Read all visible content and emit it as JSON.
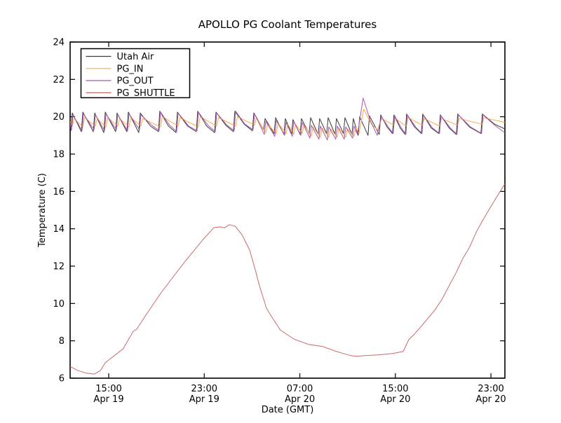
{
  "chart_data": {
    "type": "line",
    "title": "APOLLO PG Coolant Temperatures",
    "xlabel": "Date (GMT)",
    "ylabel": "Temperature (C)",
    "grid": false,
    "legend_position": "upper left",
    "ylim": [
      6,
      24
    ],
    "yticks": [
      6,
      8,
      10,
      12,
      14,
      16,
      18,
      20,
      22,
      24
    ],
    "xlim_hours_since_apr19_0000": [
      11.77,
      48.17
    ],
    "xticks": [
      {
        "t": 15,
        "time": "15:00",
        "date": "Apr 19"
      },
      {
        "t": 23,
        "time": "23:00",
        "date": "Apr 19"
      },
      {
        "t": 31,
        "time": "07:00",
        "date": "Apr 20"
      },
      {
        "t": 39,
        "time": "15:00",
        "date": "Apr 20"
      },
      {
        "t": 47,
        "time": "23:00",
        "date": "Apr 20"
      }
    ],
    "frame_color": "#000000",
    "background_color": "#ffffff",
    "series": [
      {
        "name": "Utah Air",
        "color": "#3b3b3b",
        "points": [
          [
            11.77,
            19.75
          ],
          [
            11.83,
            19.25
          ],
          [
            11.95,
            20.2
          ],
          [
            12.71,
            19.2
          ],
          [
            12.83,
            20.25
          ],
          [
            13.71,
            19.2
          ],
          [
            13.83,
            20.2
          ],
          [
            14.59,
            19.15
          ],
          [
            14.71,
            20.25
          ],
          [
            15.58,
            19.2
          ],
          [
            15.7,
            20.2
          ],
          [
            16.52,
            19.2
          ],
          [
            16.64,
            20.25
          ],
          [
            17.52,
            19.15
          ],
          [
            17.64,
            20.2
          ],
          [
            18.5,
            19.5
          ],
          [
            19.16,
            19.2
          ],
          [
            19.28,
            20.3
          ],
          [
            20.0,
            19.5
          ],
          [
            20.63,
            19.15
          ],
          [
            20.75,
            20.25
          ],
          [
            21.6,
            19.5
          ],
          [
            22.33,
            19.2
          ],
          [
            22.45,
            20.3
          ],
          [
            23.2,
            19.5
          ],
          [
            23.86,
            19.15
          ],
          [
            23.98,
            20.25
          ],
          [
            24.8,
            19.55
          ],
          [
            25.44,
            19.2
          ],
          [
            25.56,
            20.3
          ],
          [
            26.35,
            19.6
          ],
          [
            27.03,
            19.25
          ],
          [
            27.15,
            20.2
          ],
          [
            27.97,
            19.3
          ],
          [
            28.09,
            19.9
          ],
          [
            28.85,
            19.1
          ],
          [
            28.97,
            19.95
          ],
          [
            29.67,
            19.05
          ],
          [
            29.79,
            19.9
          ],
          [
            30.31,
            19.1
          ],
          [
            30.43,
            19.85
          ],
          [
            31.02,
            19.05
          ],
          [
            31.14,
            19.9
          ],
          [
            31.78,
            19.1
          ],
          [
            31.9,
            19.95
          ],
          [
            32.54,
            19.05
          ],
          [
            32.66,
            19.9
          ],
          [
            33.25,
            19.1
          ],
          [
            33.37,
            19.95
          ],
          [
            33.95,
            19.05
          ],
          [
            34.07,
            19.9
          ],
          [
            34.66,
            19.1
          ],
          [
            34.78,
            19.95
          ],
          [
            35.36,
            19.05
          ],
          [
            35.48,
            19.9
          ],
          [
            35.89,
            19.0
          ],
          [
            36.01,
            20.0
          ],
          [
            36.71,
            19.0
          ],
          [
            36.83,
            20.05
          ],
          [
            37.65,
            19.05
          ],
          [
            37.77,
            20.1
          ],
          [
            38.3,
            19.45
          ],
          [
            38.76,
            19.1
          ],
          [
            38.88,
            20.1
          ],
          [
            39.4,
            19.4
          ],
          [
            39.82,
            19.05
          ],
          [
            39.94,
            20.15
          ],
          [
            40.6,
            19.45
          ],
          [
            41.17,
            19.1
          ],
          [
            41.29,
            20.15
          ],
          [
            42.0,
            19.4
          ],
          [
            42.64,
            19.1
          ],
          [
            42.76,
            20.1
          ],
          [
            43.5,
            19.4
          ],
          [
            44.1,
            19.05
          ],
          [
            44.22,
            20.15
          ],
          [
            45.2,
            19.45
          ],
          [
            46.16,
            19.1
          ],
          [
            46.28,
            20.15
          ],
          [
            47.3,
            19.6
          ],
          [
            48.16,
            19.35
          ]
        ]
      },
      {
        "name": "PG_IN",
        "color": "#ffa843",
        "points": [
          [
            11.77,
            19.75
          ],
          [
            11.95,
            19.5
          ],
          [
            12.1,
            19.9
          ],
          [
            12.83,
            19.45
          ],
          [
            12.98,
            19.95
          ],
          [
            13.89,
            19.5
          ],
          [
            14.04,
            19.9
          ],
          [
            14.77,
            19.45
          ],
          [
            14.92,
            19.95
          ],
          [
            15.76,
            19.5
          ],
          [
            15.91,
            19.9
          ],
          [
            16.7,
            19.45
          ],
          [
            16.85,
            19.95
          ],
          [
            17.7,
            19.5
          ],
          [
            17.85,
            19.9
          ],
          [
            19.34,
            19.45
          ],
          [
            19.49,
            20.0
          ],
          [
            20.81,
            19.5
          ],
          [
            20.96,
            19.95
          ],
          [
            22.51,
            19.45
          ],
          [
            22.66,
            20.0
          ],
          [
            24.04,
            19.5
          ],
          [
            24.19,
            19.95
          ],
          [
            25.62,
            19.5
          ],
          [
            25.77,
            20.0
          ],
          [
            27.21,
            19.55
          ],
          [
            27.36,
            19.95
          ],
          [
            28.15,
            19.15
          ],
          [
            28.3,
            19.6
          ],
          [
            29.03,
            19.1
          ],
          [
            29.18,
            19.65
          ],
          [
            29.85,
            19.1
          ],
          [
            30.0,
            19.6
          ],
          [
            30.49,
            19.05
          ],
          [
            30.64,
            19.6
          ],
          [
            31.2,
            19.1
          ],
          [
            31.35,
            19.55
          ],
          [
            31.96,
            18.95
          ],
          [
            32.11,
            19.45
          ],
          [
            32.72,
            18.9
          ],
          [
            32.87,
            19.4
          ],
          [
            33.43,
            18.9
          ],
          [
            33.58,
            19.35
          ],
          [
            34.13,
            18.9
          ],
          [
            34.28,
            19.4
          ],
          [
            34.84,
            18.9
          ],
          [
            34.99,
            19.35
          ],
          [
            35.54,
            18.95
          ],
          [
            35.69,
            19.4
          ],
          [
            35.95,
            19.1
          ],
          [
            36.35,
            20.4
          ],
          [
            37.0,
            19.6
          ],
          [
            37.5,
            19.3
          ],
          [
            37.85,
            19.9
          ],
          [
            38.85,
            19.55
          ],
          [
            39.0,
            19.9
          ],
          [
            39.9,
            19.5
          ],
          [
            40.05,
            19.95
          ],
          [
            41.25,
            19.55
          ],
          [
            41.4,
            19.9
          ],
          [
            42.7,
            19.5
          ],
          [
            42.85,
            19.9
          ],
          [
            44.2,
            19.55
          ],
          [
            44.35,
            19.9
          ],
          [
            46.25,
            19.6
          ],
          [
            46.4,
            19.95
          ],
          [
            48.16,
            19.7
          ]
        ]
      },
      {
        "name": "PG_OUT",
        "color": "#a858b0",
        "points": [
          [
            11.77,
            19.6
          ],
          [
            11.89,
            19.3
          ],
          [
            12.01,
            20.1
          ],
          [
            12.77,
            19.25
          ],
          [
            12.89,
            20.15
          ],
          [
            13.77,
            19.3
          ],
          [
            13.89,
            20.1
          ],
          [
            14.65,
            19.25
          ],
          [
            14.77,
            20.15
          ],
          [
            15.64,
            19.3
          ],
          [
            15.76,
            20.1
          ],
          [
            16.58,
            19.25
          ],
          [
            16.7,
            20.15
          ],
          [
            17.58,
            19.3
          ],
          [
            17.7,
            20.1
          ],
          [
            18.6,
            19.55
          ],
          [
            19.22,
            19.25
          ],
          [
            19.34,
            20.25
          ],
          [
            20.1,
            19.55
          ],
          [
            20.69,
            19.2
          ],
          [
            20.81,
            20.2
          ],
          [
            21.7,
            19.5
          ],
          [
            22.39,
            19.25
          ],
          [
            22.51,
            20.25
          ],
          [
            23.3,
            19.55
          ],
          [
            23.92,
            19.2
          ],
          [
            24.04,
            20.2
          ],
          [
            24.9,
            19.55
          ],
          [
            25.5,
            19.25
          ],
          [
            25.62,
            20.3
          ],
          [
            26.4,
            19.6
          ],
          [
            27.09,
            19.3
          ],
          [
            27.21,
            20.15
          ],
          [
            28.03,
            19.05
          ],
          [
            28.15,
            19.75
          ],
          [
            28.91,
            18.95
          ],
          [
            29.03,
            19.8
          ],
          [
            29.73,
            19.0
          ],
          [
            29.85,
            19.7
          ],
          [
            30.37,
            18.95
          ],
          [
            30.49,
            19.75
          ],
          [
            31.08,
            19.0
          ],
          [
            31.2,
            19.7
          ],
          [
            31.84,
            18.85
          ],
          [
            31.96,
            19.55
          ],
          [
            32.6,
            18.8
          ],
          [
            32.72,
            19.5
          ],
          [
            33.31,
            18.75
          ],
          [
            33.43,
            19.45
          ],
          [
            34.01,
            18.8
          ],
          [
            34.13,
            19.5
          ],
          [
            34.72,
            18.8
          ],
          [
            34.84,
            19.45
          ],
          [
            35.42,
            18.85
          ],
          [
            35.54,
            19.5
          ],
          [
            35.83,
            19.05
          ],
          [
            36.3,
            21.0
          ],
          [
            36.9,
            19.8
          ],
          [
            37.48,
            19.0
          ],
          [
            37.83,
            20.0
          ],
          [
            38.4,
            19.45
          ],
          [
            38.82,
            19.1
          ],
          [
            38.94,
            20.05
          ],
          [
            39.5,
            19.4
          ],
          [
            39.88,
            19.05
          ],
          [
            40.0,
            20.1
          ],
          [
            40.7,
            19.45
          ],
          [
            41.23,
            19.1
          ],
          [
            41.35,
            20.1
          ],
          [
            42.1,
            19.4
          ],
          [
            42.7,
            19.1
          ],
          [
            42.82,
            20.05
          ],
          [
            43.6,
            19.4
          ],
          [
            44.16,
            19.05
          ],
          [
            44.28,
            20.1
          ],
          [
            45.3,
            19.45
          ],
          [
            46.22,
            19.1
          ],
          [
            46.34,
            20.1
          ],
          [
            47.4,
            19.5
          ],
          [
            48.16,
            19.15
          ]
        ]
      },
      {
        "name": "PG_SHUTTLE",
        "color": "#c86a6a",
        "points": [
          [
            11.77,
            6.62
          ],
          [
            12.4,
            6.42
          ],
          [
            13.1,
            6.27
          ],
          [
            13.8,
            6.22
          ],
          [
            14.3,
            6.4
          ],
          [
            14.7,
            6.82
          ],
          [
            15.3,
            7.12
          ],
          [
            16.2,
            7.57
          ],
          [
            17.05,
            8.5
          ],
          [
            17.35,
            8.62
          ],
          [
            18.1,
            9.37
          ],
          [
            19.3,
            10.5
          ],
          [
            20.55,
            11.55
          ],
          [
            21.45,
            12.3
          ],
          [
            21.9,
            12.64
          ],
          [
            22.9,
            13.43
          ],
          [
            23.8,
            14.06
          ],
          [
            24.3,
            14.1
          ],
          [
            24.7,
            14.05
          ],
          [
            25.1,
            14.22
          ],
          [
            25.6,
            14.13
          ],
          [
            26.15,
            13.69
          ],
          [
            26.8,
            12.86
          ],
          [
            27.3,
            11.74
          ],
          [
            27.6,
            11.0
          ],
          [
            28.2,
            9.75
          ],
          [
            28.67,
            9.26
          ],
          [
            29.38,
            8.57
          ],
          [
            30.55,
            8.08
          ],
          [
            31.72,
            7.81
          ],
          [
            32.9,
            7.7
          ],
          [
            34.07,
            7.43
          ],
          [
            35.25,
            7.21
          ],
          [
            35.83,
            7.17
          ],
          [
            36.42,
            7.21
          ],
          [
            37.6,
            7.25
          ],
          [
            38.77,
            7.32
          ],
          [
            39.65,
            7.43
          ],
          [
            40.12,
            8.06
          ],
          [
            40.53,
            8.32
          ],
          [
            41.12,
            8.74
          ],
          [
            41.7,
            9.19
          ],
          [
            42.29,
            9.63
          ],
          [
            42.88,
            10.2
          ],
          [
            43.46,
            10.9
          ],
          [
            44.05,
            11.6
          ],
          [
            44.64,
            12.4
          ],
          [
            45.2,
            13.0
          ],
          [
            45.81,
            13.87
          ],
          [
            46.4,
            14.55
          ],
          [
            47.0,
            15.2
          ],
          [
            47.57,
            15.8
          ],
          [
            48.16,
            16.4
          ]
        ]
      }
    ]
  }
}
